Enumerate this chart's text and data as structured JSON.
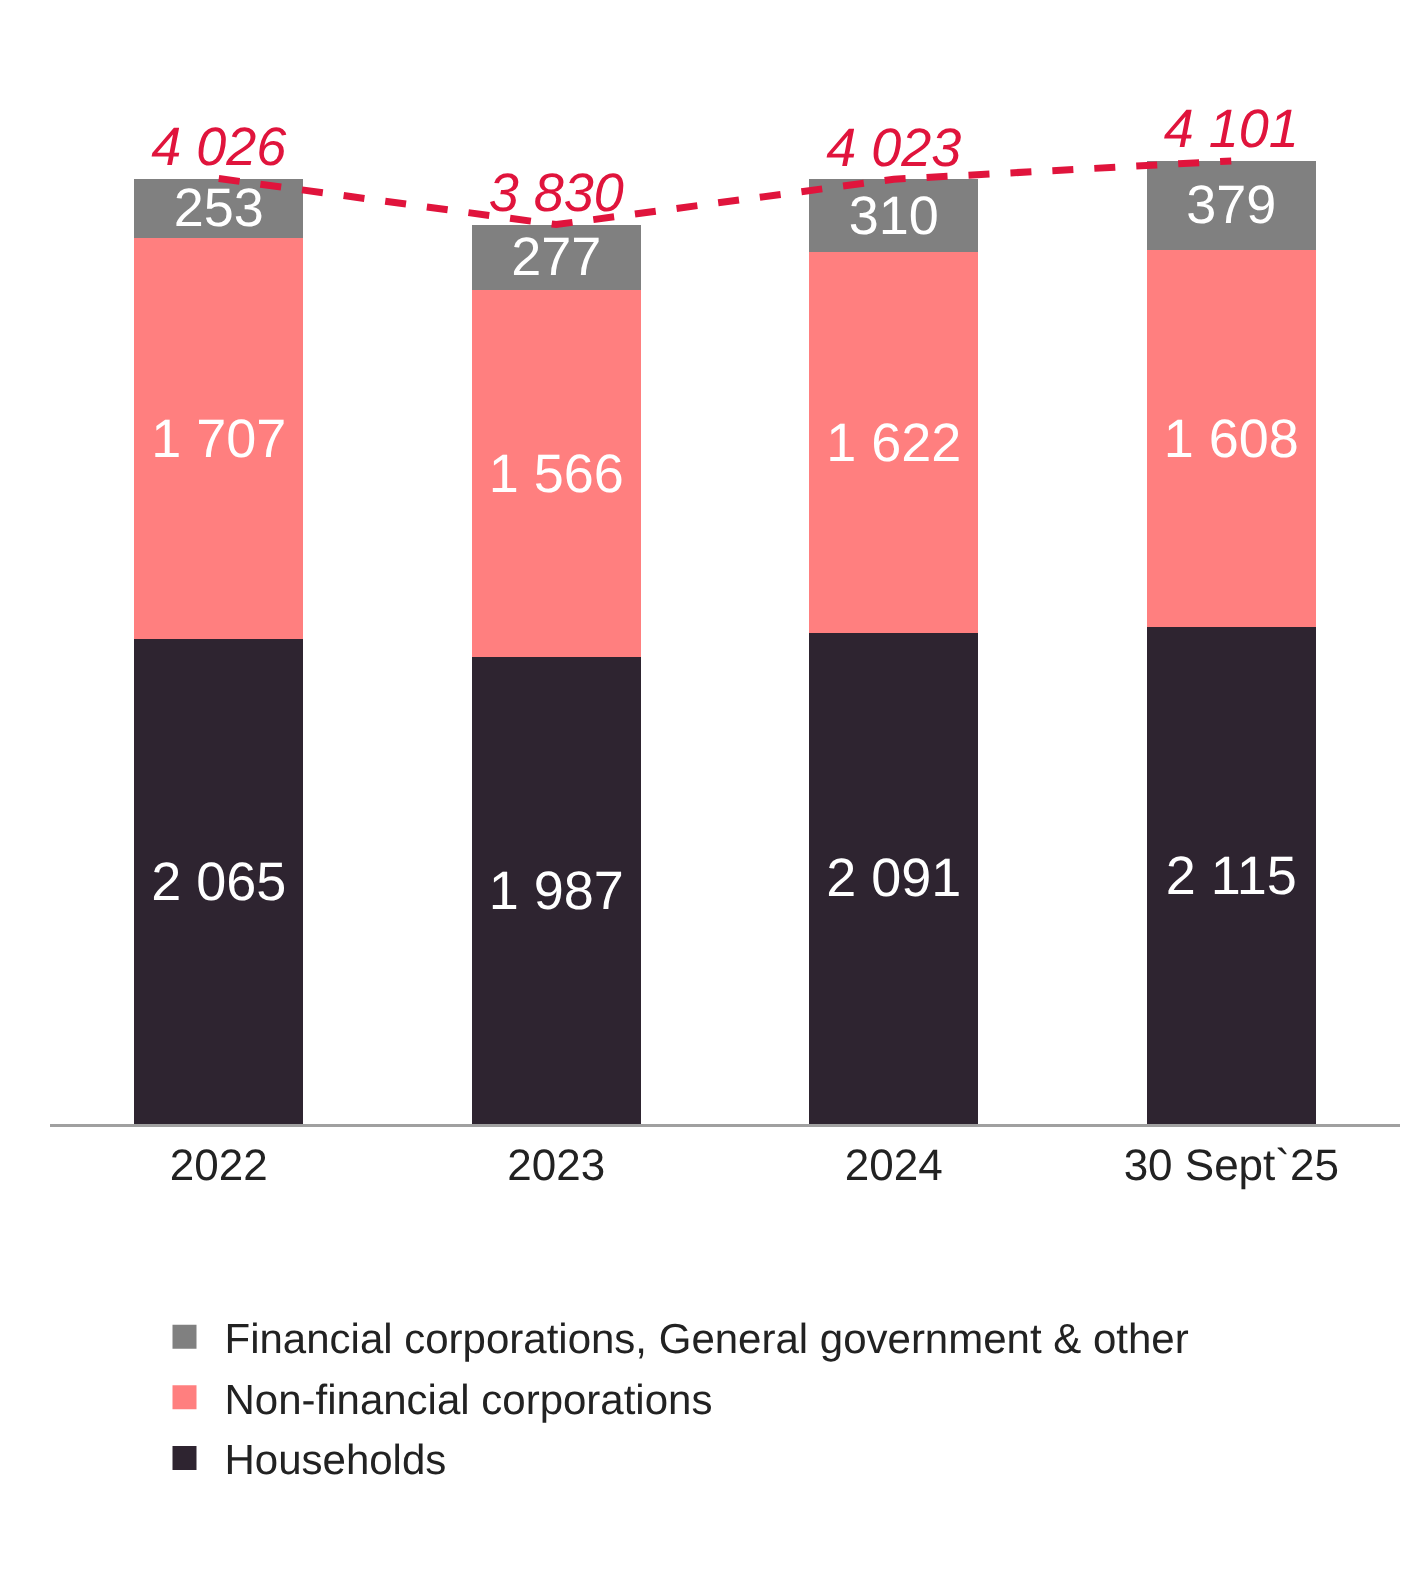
{
  "chart_data": {
    "type": "bar",
    "stacked": true,
    "categories": [
      "2022",
      "2023",
      "2024",
      "30 Sept`25"
    ],
    "series": [
      {
        "name": "Households",
        "color": "#2e2430",
        "values": [
          2065,
          1987,
          2091,
          2115
        ],
        "value_labels": [
          "2 065",
          "1 987",
          "2 091",
          "2 115"
        ]
      },
      {
        "name": "Non-financial corporations",
        "color": "#ff7f7f",
        "values": [
          1707,
          1566,
          1622,
          1608
        ],
        "value_labels": [
          "1 707",
          "1 566",
          "1 622",
          "1 608"
        ]
      },
      {
        "name": "Financial corporations, General government & other",
        "color": "#808080",
        "values": [
          253,
          277,
          310,
          379
        ],
        "value_labels": [
          "253",
          "277",
          "310",
          "379"
        ]
      },
      {
        "type": "line",
        "color": "#e0143c",
        "line_style": "dashed",
        "marker": "none",
        "values": [
          4026,
          3830,
          4023,
          4101
        ],
        "value_labels": [
          "4 026",
          "3 830",
          "4 023",
          "4 101"
        ]
      }
    ],
    "legend": "bottom",
    "tick_labels": "x",
    "grid": false
  }
}
